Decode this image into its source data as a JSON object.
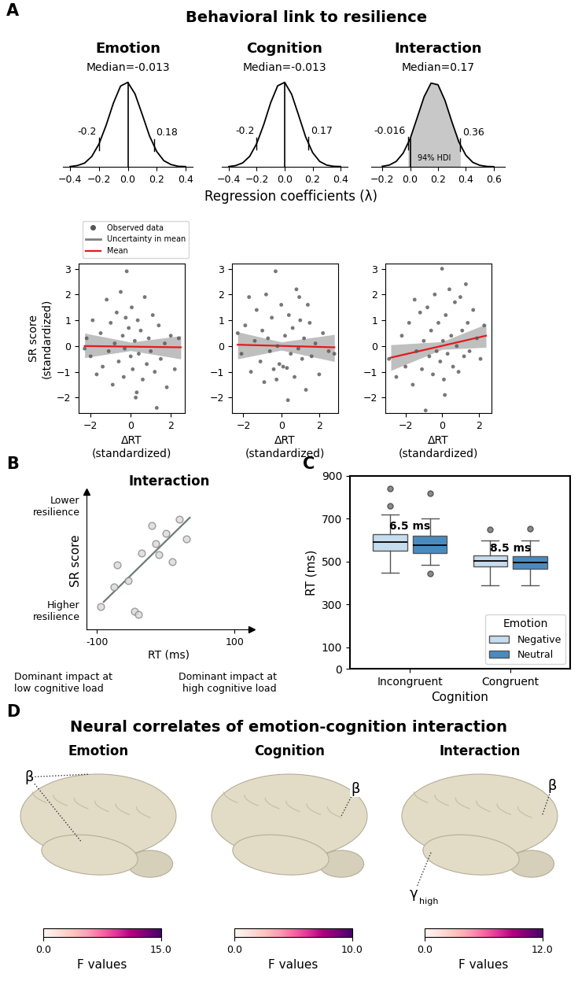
{
  "figure": {
    "panel_labels": [
      "A",
      "B",
      "C",
      "D"
    ],
    "panel_a_title": "Behavioral link to resilience",
    "panel_a_xlabel": "Regression coefficients (λ)"
  },
  "chart_data": [
    {
      "type": "density",
      "title": "Emotion",
      "subtitle": "Median=-0.013",
      "color": "#000000",
      "x": [
        -0.4,
        -0.35,
        -0.3,
        -0.25,
        -0.2,
        -0.15,
        -0.1,
        -0.05,
        0.0,
        0.05,
        0.1,
        0.15,
        0.2,
        0.25,
        0.3,
        0.35,
        0.4
      ],
      "values": [
        0.01,
        0.05,
        0.15,
        0.42,
        0.93,
        1.7,
        2.6,
        3.3,
        3.45,
        2.98,
        2.14,
        1.27,
        0.63,
        0.25,
        0.09,
        0.02,
        0.01
      ],
      "reference_line": 0,
      "hdi": [
        -0.2,
        0.18
      ],
      "xlim": [
        -0.45,
        0.45
      ],
      "ylim": [
        0,
        3.6
      ],
      "xticks": [
        {
          "value": -0.4,
          "label": "−0.4"
        },
        {
          "value": -0.2,
          "label": "−0.2"
        },
        {
          "value": 0,
          "label": "0.0"
        },
        0.2,
        0.4
      ],
      "tick_labels": "x"
    },
    {
      "type": "density",
      "title": "Cognition",
      "subtitle": "Median=-0.013",
      "color": "#000000",
      "x": [
        -0.4,
        -0.35,
        -0.3,
        -0.25,
        -0.2,
        -0.15,
        -0.1,
        -0.05,
        0.0,
        0.05,
        0.1,
        0.15,
        0.2,
        0.25,
        0.3,
        0.35,
        0.4
      ],
      "values": [
        0.01,
        0.05,
        0.16,
        0.43,
        0.95,
        1.72,
        2.62,
        3.31,
        3.45,
        2.96,
        2.1,
        1.22,
        0.58,
        0.22,
        0.07,
        0.02,
        0.01
      ],
      "reference_line": 0,
      "hdi": [
        -0.2,
        0.17
      ],
      "xlim": [
        -0.45,
        0.45
      ],
      "ylim": [
        0,
        3.6
      ],
      "xticks": [
        {
          "value": -0.4,
          "label": "−0.4"
        },
        {
          "value": -0.2,
          "label": "−0.2"
        },
        {
          "value": 0,
          "label": "0.0"
        },
        0.2,
        0.4
      ],
      "tick_labels": "x"
    },
    {
      "type": "density",
      "title": "Interaction",
      "subtitle": "Median=0.17",
      "color": "#000000",
      "x": [
        -0.2,
        -0.15,
        -0.1,
        -0.05,
        0.0,
        0.05,
        0.1,
        0.15,
        0.2,
        0.25,
        0.3,
        0.35,
        0.4,
        0.45,
        0.5,
        0.55,
        0.6
      ],
      "values": [
        0.02,
        0.07,
        0.22,
        0.56,
        1.15,
        2.0,
        2.86,
        3.42,
        3.35,
        2.71,
        1.83,
        1.01,
        0.47,
        0.18,
        0.06,
        0.015,
        0.005
      ],
      "reference_line": 0,
      "hdi": [
        -0.016,
        0.36
      ],
      "hdi_text": "94% HDI",
      "xlim": [
        -0.28,
        0.68
      ],
      "ylim": [
        0,
        3.6
      ],
      "xticks": [
        {
          "value": -0.2,
          "label": "−0.2"
        },
        {
          "value": 0,
          "label": "0.0"
        },
        0.2,
        0.4,
        0.6
      ],
      "tick_labels": "x"
    },
    {
      "type": "scatter",
      "ylabel": "SR score\n(standardized)",
      "xlabel": "ΔRT\n(standardized)",
      "legend": "lower left",
      "series": [
        {
          "name": "Observed data",
          "type": "scatter",
          "color": "#555555",
          "marker": "o",
          "x": [
            -2.2,
            -2.0,
            -1.9,
            -1.7,
            -1.5,
            -1.4,
            -1.2,
            -1.1,
            -1.0,
            -0.9,
            -0.8,
            -0.7,
            -0.6,
            -0.5,
            -0.4,
            -0.35,
            -0.3,
            -0.2,
            -0.1,
            0.0,
            0.05,
            0.1,
            0.2,
            0.3,
            0.35,
            0.4,
            0.5,
            0.6,
            0.7,
            0.8,
            0.9,
            1.0,
            1.1,
            1.2,
            1.3,
            1.4,
            1.5,
            1.7,
            1.8,
            2.0,
            2.2,
            2.4,
            -2.3,
            0.25,
            -0.25
          ],
          "values": [
            0.3,
            -0.4,
            1.0,
            -1.1,
            0.5,
            -0.8,
            1.8,
            -0.2,
            0.9,
            -1.5,
            0.1,
            1.3,
            -0.6,
            2.1,
            0.4,
            -1.2,
            -0.1,
            2.9,
            0.7,
            -0.4,
            1.5,
            -0.9,
            0.2,
            -1.8,
            1.0,
            -0.3,
            0.6,
            -1.3,
            1.9,
            -0.7,
            0.3,
            -0.2,
            1.2,
            -1.0,
            -2.4,
            0.8,
            -0.5,
            0.1,
            -1.6,
            0.4,
            -0.9,
            0.3,
            -0.1,
            -2.0,
            1.1
          ]
        },
        {
          "name": "Uncertainty in mean",
          "type": "band",
          "color": "#808080",
          "x": [
            -2.3,
            0,
            2.5
          ],
          "lower": [
            -0.45,
            -0.18,
            -0.5
          ],
          "upper": [
            0.5,
            0.15,
            0.4
          ]
        },
        {
          "name": "Mean",
          "type": "line",
          "color": "#e41a1c",
          "x": [
            -2.3,
            2.5
          ],
          "values": [
            0.0,
            -0.05
          ]
        }
      ],
      "xlim": [
        -2.6,
        2.7
      ],
      "ylim": [
        -2.6,
        3.2
      ],
      "xticks": [
        {
          "value": -2,
          "label": "−2"
        },
        0,
        2
      ],
      "yticks": [
        {
          "value": -2,
          "label": "−2"
        },
        {
          "value": -1,
          "label": "−1"
        },
        0,
        1,
        2,
        3
      ]
    },
    {
      "type": "scatter",
      "xlabel": "ΔRT\n(standardized)",
      "series": [
        {
          "type": "scatter",
          "color": "#555555",
          "marker": "o",
          "x": [
            -2.1,
            -1.9,
            -1.7,
            -1.6,
            -1.4,
            -1.3,
            -1.1,
            -1.0,
            -0.9,
            -0.8,
            -0.7,
            -0.6,
            -0.5,
            -0.4,
            -0.3,
            -0.2,
            -0.1,
            0.0,
            0.1,
            0.2,
            0.3,
            0.4,
            0.5,
            0.6,
            0.7,
            0.8,
            0.9,
            1.0,
            1.1,
            1.2,
            1.3,
            1.4,
            1.5,
            1.6,
            1.8,
            2.0,
            2.2,
            2.5,
            2.8,
            -2.3,
            0.35,
            -0.25,
            0.95
          ],
          "values": [
            -0.3,
            0.8,
            1.9,
            -1.0,
            0.2,
            1.4,
            -0.6,
            0.6,
            -1.4,
            2.0,
            0.3,
            -0.2,
            1.1,
            -0.9,
            2.9,
            0.0,
            -0.7,
            1.6,
            -0.8,
            0.4,
            -0.85,
            1.2,
            -0.3,
            0.7,
            -1.2,
            2.2,
            -0.1,
            1.0,
            -0.5,
            0.3,
            -1.7,
            1.6,
            0.9,
            -0.4,
            0.1,
            -1.1,
            0.5,
            -0.2,
            -0.3,
            0.5,
            -2.1,
            -1.3,
            1.9
          ]
        },
        {
          "type": "band",
          "color": "#808080",
          "x": [
            -2.3,
            0,
            2.8
          ],
          "lower": [
            -0.5,
            -0.16,
            -0.6
          ],
          "upper": [
            0.55,
            0.16,
            0.45
          ]
        },
        {
          "type": "line",
          "color": "#e41a1c",
          "x": [
            -2.3,
            2.8
          ],
          "values": [
            0.05,
            -0.05
          ]
        }
      ],
      "xlim": [
        -2.6,
        3.0
      ],
      "ylim": [
        -2.6,
        3.2
      ],
      "xticks": [
        {
          "value": -2,
          "label": "−2"
        },
        0,
        2
      ],
      "yticks": [
        {
          "value": -2,
          "label": "−2"
        },
        {
          "value": -1,
          "label": "−1"
        },
        0,
        1,
        2,
        3
      ]
    },
    {
      "type": "scatter",
      "xlabel": "ΔRT\n(standardized)",
      "series": [
        {
          "type": "scatter",
          "color": "#555555",
          "marker": "o",
          "x": [
            -2.9,
            -2.5,
            -2.2,
            -2.0,
            -1.8,
            -1.6,
            -1.4,
            -1.2,
            -1.1,
            -1.0,
            -0.9,
            -0.8,
            -0.7,
            -0.6,
            -0.5,
            -0.4,
            -0.3,
            -0.2,
            -0.1,
            0.0,
            0.05,
            0.1,
            0.2,
            0.3,
            0.4,
            0.5,
            0.6,
            0.7,
            0.8,
            0.9,
            1.0,
            1.1,
            1.2,
            1.3,
            1.4,
            1.5,
            1.7,
            1.9,
            2.1,
            2.3,
            -1.5,
            0.15
          ],
          "values": [
            -0.5,
            -1.2,
            0.4,
            -0.8,
            0.9,
            -1.5,
            -0.2,
            1.3,
            -0.9,
            0.2,
            -2.5,
            1.5,
            -0.4,
            0.6,
            -1.1,
            2.0,
            -0.2,
            0.9,
            -0.6,
            3.0,
            0.2,
            -1.3,
            1.2,
            -0.3,
            2.2,
            0.4,
            -0.8,
            1.7,
            0.0,
            -1.0,
            1.9,
            0.6,
            -0.4,
            2.4,
            0.9,
            -0.2,
            1.4,
            0.3,
            -0.5,
            0.8,
            1.8,
            -1.9
          ]
        },
        {
          "type": "band",
          "color": "#808080",
          "x": [
            -2.8,
            0,
            2.4
          ],
          "lower": [
            -0.95,
            -0.13,
            -0.05
          ],
          "upper": [
            0.05,
            0.17,
            0.85
          ]
        },
        {
          "type": "line",
          "color": "#e41a1c",
          "x": [
            -2.8,
            2.4
          ],
          "values": [
            -0.45,
            0.4
          ]
        }
      ],
      "xlim": [
        -3.1,
        2.7
      ],
      "ylim": [
        -2.6,
        3.2
      ],
      "xticks": [
        {
          "value": -2,
          "label": "−2"
        },
        0,
        2
      ],
      "yticks": [
        {
          "value": -2,
          "label": "−2"
        },
        {
          "value": -1,
          "label": "−1"
        },
        0,
        1,
        2,
        3
      ]
    },
    {
      "type": "scatter",
      "title": "Interaction",
      "xlabel": "RT (ms)",
      "ylabel": "SR score",
      "y_annotations": [
        "Lower resilience",
        "Higher resilience"
      ],
      "x_annotations": [
        "Dominant impact at\nlow cognitive load",
        "Dominant impact at\nhigh cognitive load"
      ],
      "series": [
        {
          "type": "scatter",
          "color": "#d9d9d9",
          "marker": "o",
          "x": [
            -95,
            -75,
            -70,
            -55,
            -45,
            -40,
            -35,
            -20,
            -15,
            -10,
            0,
            10,
            20,
            30
          ],
          "values": [
            1.5,
            2.8,
            4.2,
            3.2,
            1.2,
            1.0,
            5.0,
            6.8,
            5.6,
            4.9,
            6.3,
            4.4,
            7.2,
            5.9
          ]
        },
        {
          "type": "line",
          "color": "#6e7b76",
          "x": [
            -90,
            35
          ],
          "values": [
            1.8,
            7.3
          ]
        }
      ],
      "xlim": [
        -115,
        125
      ],
      "ylim": [
        0,
        9
      ],
      "xticks": [
        -100,
        100
      ],
      "tick_labels": "x"
    },
    {
      "type": "box",
      "categories": [
        "Incongruent",
        "Congruent"
      ],
      "xlabel": "Cognition",
      "ylabel": "RT (ms)",
      "ylim": [
        0,
        900
      ],
      "yticks": [
        0,
        100,
        300,
        500,
        700,
        900
      ],
      "legend": "lower right",
      "legend_title": "Emotion",
      "series": [
        {
          "name": "Negative",
          "color": "#c6dcef",
          "stats": [
            {
              "whislo": 450,
              "q1": 550,
              "med": 590,
              "q3": 630,
              "whishi": 720,
              "fliers": [
                760,
                840
              ]
            },
            {
              "whislo": 390,
              "q1": 478,
              "med": 505,
              "q3": 530,
              "whishi": 600,
              "fliers": [
                650
              ]
            }
          ]
        },
        {
          "name": "Neutral",
          "color": "#4a8bbf",
          "stats": [
            {
              "whislo": 485,
              "q1": 540,
              "med": 578,
              "q3": 622,
              "whishi": 700,
              "fliers": [
                445,
                820
              ]
            },
            {
              "whislo": 390,
              "q1": 465,
              "med": 495,
              "q3": 525,
              "whishi": 600,
              "fliers": [
                655
              ]
            }
          ]
        }
      ],
      "annotations": [
        {
          "text": "6.5 ms",
          "category": "Incongruent"
        },
        {
          "text": "8.5 ms",
          "category": "Congruent"
        }
      ]
    }
  ],
  "panel_d": {
    "title": "Neural correlates of emotion-cognition interaction",
    "maps": [
      {
        "title": "Emotion",
        "labels": [
          {
            "text": "β"
          }
        ],
        "colorbar_range": [
          0.0,
          15.0
        ],
        "colorbar_ticks": [
          {
            "value": 0,
            "label": "0.0"
          },
          {
            "value": 15,
            "label": "15.0"
          }
        ],
        "colorbar_label": "F values"
      },
      {
        "title": "Cognition",
        "labels": [
          {
            "text": "β"
          }
        ],
        "colorbar_range": [
          0.0,
          10.0
        ],
        "colorbar_ticks": [
          {
            "value": 0,
            "label": "0.0"
          },
          {
            "value": 10,
            "label": "10.0"
          }
        ],
        "colorbar_label": "F values"
      },
      {
        "title": "Interaction",
        "labels": [
          {
            "text": "β"
          },
          {
            "text": "γ",
            "subscript": "high"
          }
        ],
        "colorbar_range": [
          0.0,
          12.0
        ],
        "colorbar_ticks": [
          {
            "value": 0,
            "label": "0.0"
          },
          {
            "value": 12,
            "label": "12.0"
          }
        ],
        "colorbar_label": "F values"
      }
    ]
  }
}
